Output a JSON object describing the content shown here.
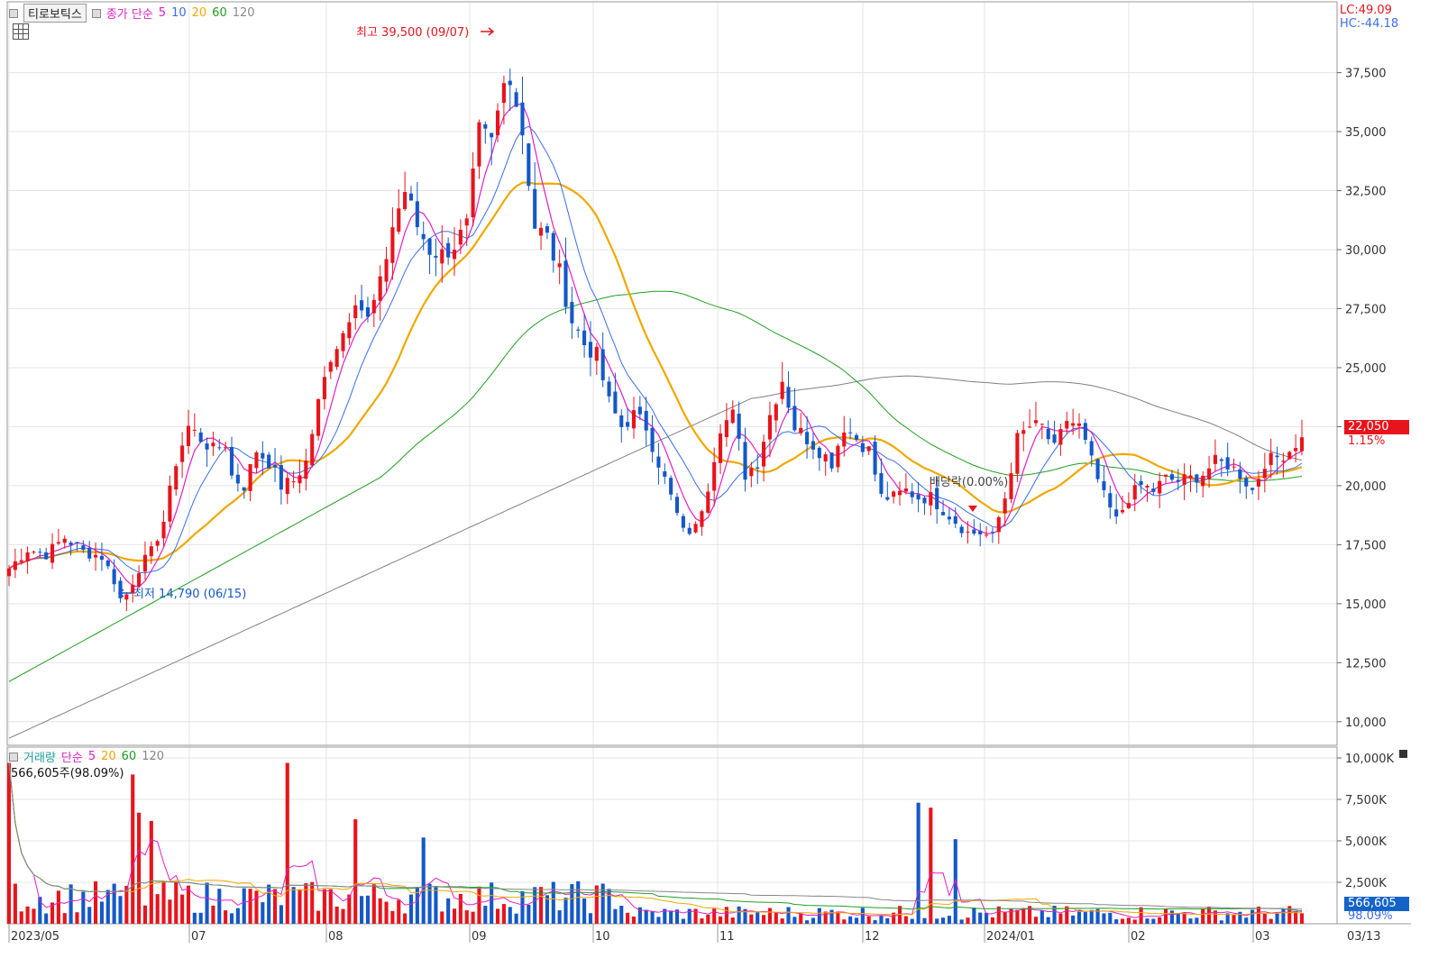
{
  "chart_data": {
    "type": "candlestick",
    "stock_name": "티로보틱스",
    "price_legend": {
      "label": "종가 단순",
      "periods": [
        "5",
        "10",
        "20",
        "60",
        "120"
      ]
    },
    "volume_legend": {
      "title": "거래량",
      "label": "단순",
      "periods": [
        "5",
        "20",
        "60",
        "120"
      ]
    },
    "lc_label": "LC:49.09",
    "hc_label": "HC:-44.18",
    "high_annotation": "최고 39,500 (09/07)",
    "low_annotation": "최저 14,790 (06/15)",
    "dividend_annotation": "배당락(0.00%)",
    "current_price": "22,050",
    "change_pct": "1.15%",
    "volume_value_label": "566,605주(98.09%)",
    "current_volume": "566,605",
    "volume_pct": "98.09%",
    "price_ticks": [
      "37,500",
      "35,000",
      "32,500",
      "30,000",
      "27,500",
      "25,000",
      "22,500",
      "20,000",
      "17,500",
      "15,000",
      "12,500",
      "10,000"
    ],
    "volume_ticks": [
      "10,000K",
      "7,500K",
      "5,000K",
      "2,500K"
    ],
    "x_labels": [
      "2023/05",
      "07",
      "08",
      "09",
      "10",
      "11",
      "12",
      "2024/01",
      "02",
      "03",
      "03/13"
    ],
    "ylim": [
      9000,
      40500
    ],
    "volume_ylim_k": [
      0,
      10000
    ],
    "ma_colors": {
      "ma5": "#e020c8",
      "ma10": "#3a6ee8",
      "ma20": "#f0a800",
      "ma60": "#1fa020",
      "ma120": "#808080"
    },
    "up_color": "#e8141c",
    "down_color": "#1458c8",
    "price_anchors": [
      [
        0,
        16500
      ],
      [
        3,
        17300
      ],
      [
        6,
        17100
      ],
      [
        9,
        17800
      ],
      [
        12,
        17200
      ],
      [
        15,
        17000
      ],
      [
        17,
        16000
      ],
      [
        18,
        15200
      ],
      [
        19,
        15400
      ],
      [
        21,
        16500
      ],
      [
        23,
        17200
      ],
      [
        25,
        18500
      ],
      [
        27,
        21000
      ],
      [
        29,
        22500
      ],
      [
        31,
        22000
      ],
      [
        33,
        21500
      ],
      [
        35,
        21800
      ],
      [
        36,
        20400
      ],
      [
        38,
        20000
      ],
      [
        40,
        21500
      ],
      [
        42,
        21000
      ],
      [
        44,
        20000
      ],
      [
        46,
        20200
      ],
      [
        48,
        21000
      ],
      [
        50,
        23500
      ],
      [
        52,
        25500
      ],
      [
        54,
        26500
      ],
      [
        56,
        28000
      ],
      [
        58,
        27000
      ],
      [
        60,
        28500
      ],
      [
        62,
        31000
      ],
      [
        64,
        32500
      ],
      [
        66,
        31000
      ],
      [
        68,
        30000
      ],
      [
        70,
        29800
      ],
      [
        72,
        30200
      ],
      [
        74,
        31000
      ],
      [
        76,
        35000
      ],
      [
        78,
        34500
      ],
      [
        80,
        37000
      ],
      [
        81,
        37500
      ],
      [
        83,
        35000
      ],
      [
        85,
        31000
      ],
      [
        87,
        30500
      ],
      [
        89,
        29000
      ],
      [
        91,
        27000
      ],
      [
        93,
        26000
      ],
      [
        95,
        25500
      ],
      [
        97,
        23500
      ],
      [
        99,
        22500
      ],
      [
        101,
        23000
      ],
      [
        103,
        22500
      ],
      [
        105,
        21000
      ],
      [
        107,
        19500
      ],
      [
        109,
        18000
      ],
      [
        111,
        18200
      ],
      [
        113,
        20000
      ],
      [
        115,
        22500
      ],
      [
        117,
        23000
      ],
      [
        119,
        20500
      ],
      [
        121,
        21000
      ],
      [
        123,
        23000
      ],
      [
        125,
        24500
      ],
      [
        127,
        22500
      ],
      [
        129,
        22000
      ],
      [
        131,
        21500
      ],
      [
        133,
        21000
      ],
      [
        135,
        22500
      ],
      [
        137,
        22000
      ],
      [
        139,
        21500
      ],
      [
        141,
        19500
      ],
      [
        143,
        19500
      ],
      [
        145,
        19800
      ],
      [
        147,
        19500
      ],
      [
        149,
        19500
      ],
      [
        151,
        19000
      ],
      [
        153,
        18500
      ],
      [
        155,
        18000
      ],
      [
        157,
        18000
      ],
      [
        159,
        17800
      ],
      [
        161,
        19500
      ],
      [
        163,
        22000
      ],
      [
        165,
        22500
      ],
      [
        167,
        22500
      ],
      [
        169,
        21500
      ],
      [
        171,
        22800
      ],
      [
        173,
        22500
      ],
      [
        175,
        21000
      ],
      [
        177,
        19500
      ],
      [
        179,
        18500
      ],
      [
        181,
        19500
      ],
      [
        183,
        20000
      ],
      [
        185,
        19800
      ],
      [
        187,
        20300
      ],
      [
        189,
        20200
      ],
      [
        191,
        20300
      ],
      [
        193,
        20500
      ],
      [
        195,
        21000
      ],
      [
        197,
        20900
      ],
      [
        199,
        20500
      ],
      [
        201,
        19800
      ],
      [
        203,
        21000
      ],
      [
        205,
        21200
      ],
      [
        207,
        21500
      ],
      [
        208,
        21800
      ],
      [
        209,
        22050
      ]
    ],
    "big_volume_bars_k": [
      [
        0,
        9700
      ],
      [
        20,
        9000
      ],
      [
        21,
        6700
      ],
      [
        23,
        6200
      ],
      [
        45,
        9700
      ],
      [
        56,
        6300
      ],
      [
        67,
        5200
      ],
      [
        147,
        7300
      ],
      [
        149,
        7000
      ],
      [
        153,
        5100
      ]
    ]
  }
}
